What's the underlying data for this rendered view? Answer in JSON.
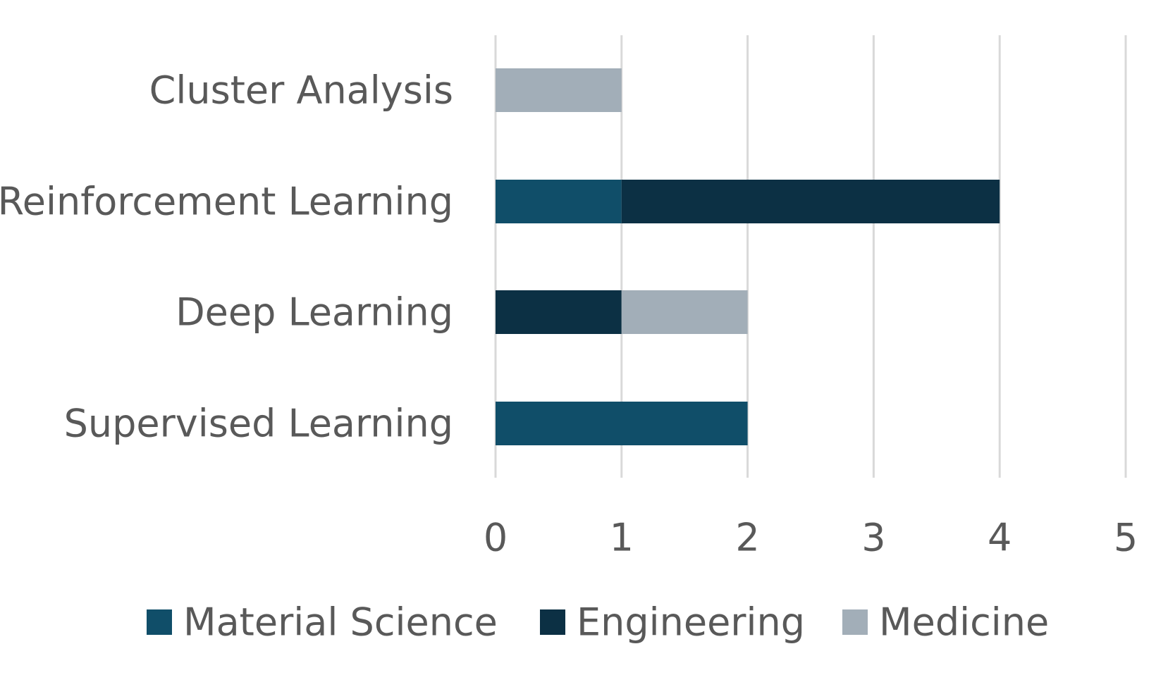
{
  "chart_data": {
    "type": "bar",
    "orientation": "horizontal",
    "stacked": true,
    "categories": [
      "Cluster Analysis",
      "Reinforcement Learning",
      "Deep Learning",
      "Supervised Learning"
    ],
    "series": [
      {
        "name": "Material Science",
        "color": "#104e69",
        "values": [
          0,
          1,
          0,
          2
        ]
      },
      {
        "name": "Engineering",
        "color": "#0c3044",
        "values": [
          0,
          3,
          1,
          0
        ]
      },
      {
        "name": "Medicine",
        "color": "#a2aeb8",
        "values": [
          1,
          0,
          1,
          0
        ]
      }
    ],
    "xlim": [
      0,
      5
    ],
    "xticks": [
      "0",
      "1",
      "2",
      "3",
      "4",
      "5"
    ],
    "title": "",
    "xlabel": "",
    "ylabel": "",
    "grid": "vertical",
    "legend": "bottom"
  }
}
